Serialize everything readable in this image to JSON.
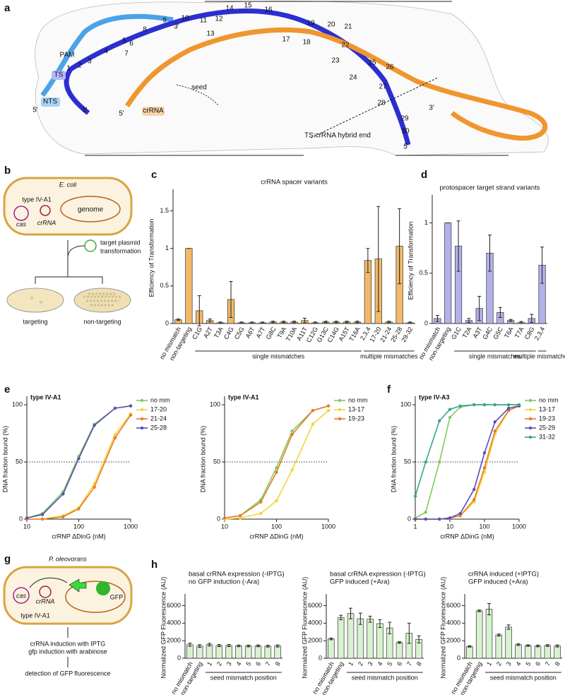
{
  "panel_labels": [
    "a",
    "b",
    "c",
    "d",
    "e",
    "f",
    "g",
    "h"
  ],
  "diagrams": {
    "a": {
      "numbers": [
        "1",
        "2",
        "3",
        "4",
        "5",
        "6",
        "7",
        "8",
        "9",
        "10",
        "11",
        "12",
        "13",
        "14",
        "15",
        "16",
        "17",
        "18",
        "19",
        "20",
        "21",
        "22",
        "23",
        "24",
        "25",
        "26",
        "27",
        "28",
        "29",
        "30"
      ],
      "labels": [
        "3'",
        "PAM",
        "TS",
        "NTS",
        "5'",
        "3'",
        "5'",
        "crRNA",
        "seed",
        "TS:crRNA hybrid end",
        "3'",
        "5'"
      ]
    },
    "b": {
      "organism": "E. coli",
      "system": "type IV-A1",
      "cas": "cas",
      "crrna": "crRNA",
      "genome": "genome",
      "step": [
        "target plasmid",
        "transformation"
      ],
      "outcomes": [
        "targeting",
        "non-targeting"
      ]
    },
    "g": {
      "organism": "P. oleovorans",
      "cas": "cas",
      "crrna": "crRNA",
      "gfp": "GFP",
      "system": "type IV-A1",
      "steps": [
        "crRNA induction with IPTG",
        "gfp induction with arabinose"
      ],
      "readout": "detection of GFP fluorescence"
    }
  },
  "chart_data": [
    {
      "type": "bar",
      "title": "crRNA spacer variants",
      "y_label": "Efficiency of Transformation",
      "categories": [
        "no mismatch",
        "non-targeting",
        "C1G",
        "A2T",
        "T3A",
        "C4G",
        "C5G",
        "A6T",
        "A7T",
        "G8C",
        "T9A",
        "T10A",
        "A11T",
        "C12G",
        "G13C",
        "C14G",
        "A15T",
        "T16A",
        "2,3,4",
        "17-20",
        "21-24",
        "25-28",
        "29-32"
      ],
      "values": [
        0.05,
        1,
        0.17,
        0.04,
        0.01,
        0.32,
        0.01,
        0.01,
        0.01,
        0.02,
        0.02,
        0.02,
        0.04,
        0.01,
        0.02,
        0.02,
        0.02,
        0.02,
        0.84,
        0.86,
        0.02,
        1.03,
        0.01
      ],
      "errors": [
        0.01,
        0,
        0.2,
        0.02,
        0.01,
        0.24,
        0.01,
        0.01,
        0.01,
        0.01,
        0.01,
        0.01,
        0.03,
        0.01,
        0.01,
        0.01,
        0.01,
        0.01,
        0.16,
        0.7,
        0.01,
        0.5,
        0.01
      ],
      "group_labels": [
        "single mismatches",
        "multiple mismatches"
      ],
      "color": "#f2b968",
      "ylim": [
        0,
        1.75
      ],
      "yticks": [
        0,
        0.5,
        1,
        1.5
      ]
    },
    {
      "type": "bar",
      "title": "protospacer target strand variants",
      "y_label": "Efficiency of Transformation",
      "categories": [
        "no mismatch",
        "non-targeting",
        "G1C",
        "T2A",
        "A3T",
        "G4C",
        "G5C",
        "T6A",
        "T7A",
        "C8G",
        "2,3,4"
      ],
      "values": [
        0.05,
        1,
        0.77,
        0.03,
        0.15,
        0.7,
        0.11,
        0.03,
        0.01,
        0.05,
        0.58
      ],
      "errors": [
        0.03,
        0,
        0.25,
        0.02,
        0.12,
        0.18,
        0.05,
        0.01,
        0.01,
        0.04,
        0.18
      ],
      "group_labels": [
        "single mismatches",
        "multiple mismatches"
      ],
      "color": "#b3b1ea",
      "ylim": [
        0,
        1.25
      ],
      "yticks": [
        0,
        0.5,
        1
      ]
    },
    {
      "type": "line",
      "annotation": "type IV-A1",
      "x_label": "crRNP ΔDinG (nM)",
      "y_label": "DNA fraction bound (%)",
      "log_x": true,
      "reference_line": 50,
      "x": [
        10,
        20,
        50,
        100,
        200,
        500,
        1000
      ],
      "series": [
        {
          "name": "no mm",
          "color": "#7dcc5d",
          "values": [
            1,
            5,
            24,
            55,
            83,
            97,
            99
          ]
        },
        {
          "name": "17-20",
          "color": "#f5d33b",
          "values": [
            0,
            0,
            3,
            10,
            31,
            74,
            92
          ]
        },
        {
          "name": "21-24",
          "color": "#e87a2a",
          "values": [
            0,
            0,
            2,
            9,
            28,
            71,
            91
          ]
        },
        {
          "name": "25-28",
          "color": "#5a4fb5",
          "values": [
            1,
            4,
            22,
            53,
            82,
            97,
            99
          ]
        }
      ],
      "xlim": [
        10,
        1000
      ],
      "xticks": [
        10,
        100,
        1000
      ],
      "ylim": [
        0,
        105
      ],
      "yticks": [
        0,
        50,
        100
      ]
    },
    {
      "type": "line",
      "annotation": "type IV-A1",
      "x_label": "crRNP ΔDinG (nM)",
      "y_label": "DNA fraction bound (%)",
      "log_x": true,
      "reference_line": 50,
      "x": [
        10,
        20,
        50,
        100,
        200,
        500,
        1000
      ],
      "series": [
        {
          "name": "no mm",
          "color": "#7dcc5d",
          "values": [
            1,
            3,
            17,
            45,
            77,
            95,
            99
          ]
        },
        {
          "name": "13-17",
          "color": "#f5d33b",
          "values": [
            0,
            1,
            5,
            16,
            43,
            83,
            95
          ]
        },
        {
          "name": "19-23",
          "color": "#e87a2a",
          "values": [
            1,
            3,
            15,
            41,
            74,
            95,
            99
          ]
        }
      ],
      "xlim": [
        10,
        1000
      ],
      "xticks": [
        10,
        100,
        1000
      ],
      "ylim": [
        0,
        105
      ],
      "yticks": [
        0,
        50,
        100
      ]
    },
    {
      "type": "line",
      "annotation": "type IV-A3",
      "x_label": "crRNP ΔDinG (nM)",
      "y_label": "DNA fraction bound (%)",
      "log_x": true,
      "reference_line": 50,
      "x": [
        1,
        2,
        5,
        10,
        20,
        50,
        100,
        200,
        500,
        1000
      ],
      "series": [
        {
          "name": "no mm",
          "color": "#7dcc5d",
          "values": [
            1,
            6,
            50,
            89,
            98,
            100,
            100,
            100,
            100,
            100
          ]
        },
        {
          "name": "13-17",
          "color": "#f5d33b",
          "values": [
            0,
            0,
            0,
            1,
            3,
            15,
            41,
            74,
            95,
            99
          ]
        },
        {
          "name": "19-23",
          "color": "#e87a2a",
          "values": [
            0,
            0,
            0,
            1,
            3,
            17,
            45,
            77,
            95,
            99
          ]
        },
        {
          "name": "25-29",
          "color": "#5a4fb5",
          "values": [
            0,
            0,
            0,
            1,
            5,
            26,
            58,
            85,
            97,
            99
          ]
        },
        {
          "name": "31-32",
          "color": "#3aa58a",
          "values": [
            20,
            50,
            86,
            96,
            99,
            100,
            100,
            100,
            100,
            100
          ]
        }
      ],
      "xlim": [
        1,
        1000
      ],
      "xticks": [
        1,
        10,
        100,
        1000
      ],
      "ylim": [
        0,
        105
      ],
      "yticks": [
        0,
        50,
        100
      ]
    },
    {
      "type": "bar",
      "title": [
        "basal crRNA expression (-IPTG)",
        "no GFP induction (-Ara)"
      ],
      "y_label": "Normalized GFP Fluorescence (AU)",
      "x_label": "seed mismatch position",
      "categories": [
        "no mismatch",
        "non-targeting",
        "1",
        "2",
        "3",
        "4",
        "5",
        "6",
        "7",
        "8"
      ],
      "values": [
        1550,
        1400,
        1550,
        1450,
        1450,
        1420,
        1400,
        1420,
        1380,
        1400
      ],
      "errors": [
        180,
        150,
        150,
        120,
        120,
        100,
        100,
        100,
        100,
        120
      ],
      "color": "#d8f2d0",
      "ylim": [
        0,
        7000
      ],
      "yticks": [
        0,
        2000,
        4000,
        6000
      ]
    },
    {
      "type": "bar",
      "title": [
        "basal crRNA expression (-IPTG)",
        "GFP induced (+Ara)"
      ],
      "y_label": "Normalized GFP Fluorescence (AU)",
      "x_label": "seed mismatch position",
      "categories": [
        "no mismatch",
        "non-targeting",
        "1",
        "2",
        "3",
        "4",
        "5",
        "6",
        "7",
        "8"
      ],
      "values": [
        2200,
        4650,
        5100,
        4500,
        4450,
        3950,
        3450,
        1800,
        2850,
        2150
      ],
      "errors": [
        100,
        250,
        600,
        650,
        350,
        450,
        650,
        100,
        1150,
        400
      ],
      "color": "#d8f2d0",
      "ylim": [
        0,
        7000
      ],
      "yticks": [
        0,
        2000,
        4000,
        6000
      ]
    },
    {
      "type": "bar",
      "title": [
        "crRNA induced (+IPTG)",
        "GFP induced (+Ara)"
      ],
      "y_label": "Normalized GFP Fluorescence (AU)",
      "x_label": "seed mismatch position",
      "categories": [
        "no mismatch",
        "non-targeting",
        "1",
        "2",
        "3",
        "4",
        "5",
        "6",
        "7",
        "8"
      ],
      "values": [
        1350,
        5400,
        5600,
        2650,
        3550,
        1550,
        1450,
        1400,
        1450,
        1400
      ],
      "errors": [
        80,
        100,
        650,
        120,
        250,
        100,
        80,
        100,
        100,
        120
      ],
      "color": "#d8f2d0",
      "ylim": [
        0,
        7000
      ],
      "yticks": [
        0,
        2000,
        4000,
        6000
      ]
    }
  ]
}
